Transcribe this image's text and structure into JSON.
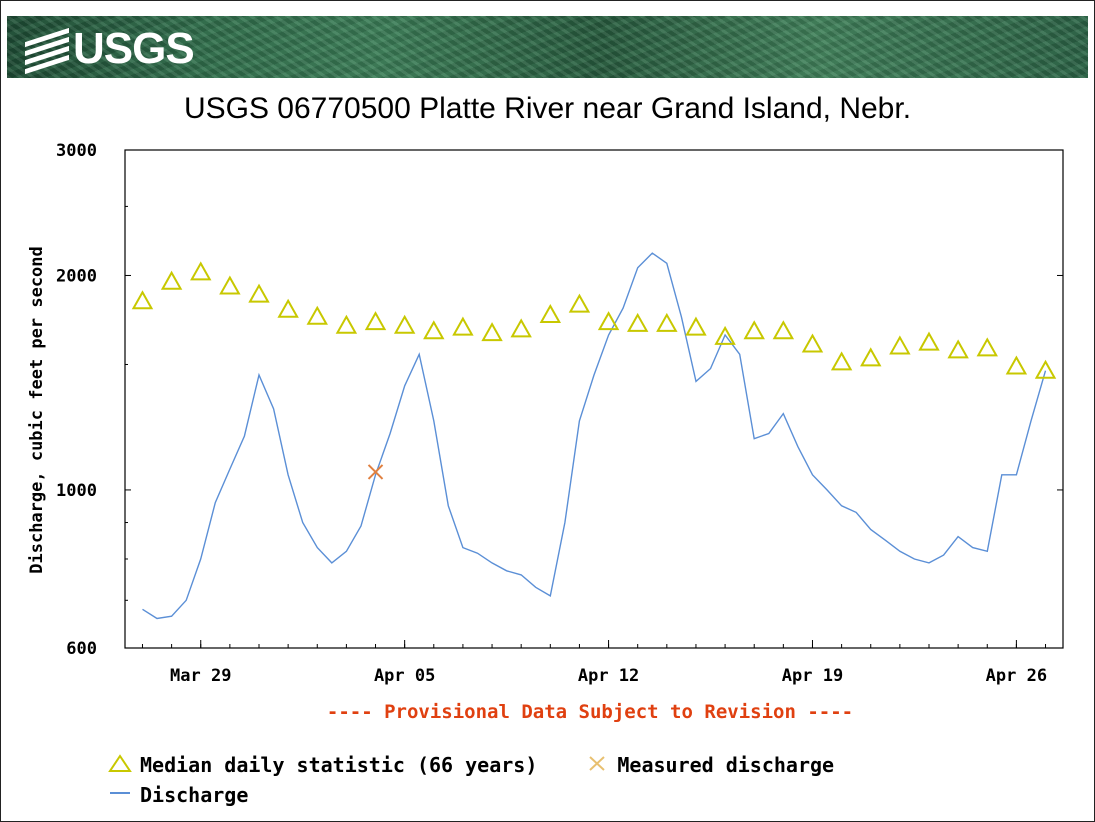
{
  "header": {
    "logo_text": "USGS",
    "title": "USGS 06770500 Platte River near Grand Island, Nebr."
  },
  "notice": "---- Provisional Data Subject to Revision ----",
  "legend": {
    "median": "Median daily statistic (66 years)",
    "measured": "Measured discharge",
    "discharge": "Discharge"
  },
  "colors": {
    "median": "#c8c800",
    "measured": "#e08040",
    "discharge": "#5b8fd6",
    "notice": "#e04010"
  },
  "chart_data": {
    "type": "line",
    "title": "USGS 06770500 Platte River near Grand Island, Nebr.",
    "xlabel": "",
    "ylabel": "Discharge, cubic feet per second",
    "yscale": "log",
    "ylim": [
      600,
      3000
    ],
    "yticks": [
      600,
      1000,
      2000,
      3000
    ],
    "xlim": [
      "2007-03-27",
      "2007-04-27"
    ],
    "xticks": [
      {
        "date": "2007-03-29",
        "label": "Mar 29"
      },
      {
        "date": "2007-04-05",
        "label": "Apr 05"
      },
      {
        "date": "2007-04-12",
        "label": "Apr 12"
      },
      {
        "date": "2007-04-19",
        "label": "Apr 19"
      },
      {
        "date": "2007-04-26",
        "label": "Apr 26"
      }
    ],
    "grid": false,
    "legend_position": "bottom",
    "series": [
      {
        "name": "Median daily statistic (66 years)",
        "kind": "points",
        "marker": "triangle",
        "x": [
          "2007-03-27",
          "2007-03-28",
          "2007-03-29",
          "2007-03-30",
          "2007-03-31",
          "2007-04-01",
          "2007-04-02",
          "2007-04-03",
          "2007-04-04",
          "2007-04-05",
          "2007-04-06",
          "2007-04-07",
          "2007-04-08",
          "2007-04-09",
          "2007-04-10",
          "2007-04-11",
          "2007-04-12",
          "2007-04-13",
          "2007-04-14",
          "2007-04-15",
          "2007-04-16",
          "2007-04-17",
          "2007-04-18",
          "2007-04-19",
          "2007-04-20",
          "2007-04-21",
          "2007-04-22",
          "2007-04-23",
          "2007-04-24",
          "2007-04-25",
          "2007-04-26",
          "2007-04-27"
        ],
        "y": [
          1840,
          1960,
          2020,
          1930,
          1880,
          1790,
          1750,
          1700,
          1720,
          1700,
          1670,
          1690,
          1660,
          1680,
          1760,
          1820,
          1720,
          1710,
          1710,
          1690,
          1640,
          1670,
          1670,
          1600,
          1510,
          1530,
          1590,
          1610,
          1570,
          1580,
          1490,
          1470
        ]
      },
      {
        "name": "Measured discharge",
        "kind": "points",
        "marker": "x",
        "x": [
          "2007-04-04"
        ],
        "y": [
          1060
        ]
      },
      {
        "name": "Discharge",
        "kind": "line",
        "x": [
          "2007-03-27",
          "2007-03-27T12:00",
          "2007-03-28",
          "2007-03-28T12:00",
          "2007-03-29",
          "2007-03-29T12:00",
          "2007-03-30",
          "2007-03-30T12:00",
          "2007-03-31",
          "2007-03-31T12:00",
          "2007-04-01",
          "2007-04-01T12:00",
          "2007-04-02",
          "2007-04-02T12:00",
          "2007-04-03",
          "2007-04-03T12:00",
          "2007-04-04",
          "2007-04-04T12:00",
          "2007-04-05",
          "2007-04-05T12:00",
          "2007-04-06",
          "2007-04-06T12:00",
          "2007-04-07",
          "2007-04-07T12:00",
          "2007-04-08",
          "2007-04-08T12:00",
          "2007-04-09",
          "2007-04-09T12:00",
          "2007-04-10",
          "2007-04-10T12:00",
          "2007-04-11",
          "2007-04-11T12:00",
          "2007-04-12",
          "2007-04-12T12:00",
          "2007-04-13",
          "2007-04-13T12:00",
          "2007-04-14",
          "2007-04-14T12:00",
          "2007-04-15",
          "2007-04-15T12:00",
          "2007-04-16",
          "2007-04-16T12:00",
          "2007-04-17",
          "2007-04-17T12:00",
          "2007-04-18",
          "2007-04-18T12:00",
          "2007-04-19",
          "2007-04-19T12:00",
          "2007-04-20",
          "2007-04-20T12:00",
          "2007-04-21",
          "2007-04-21T12:00",
          "2007-04-22",
          "2007-04-22T12:00",
          "2007-04-23",
          "2007-04-23T12:00",
          "2007-04-24",
          "2007-04-24T12:00",
          "2007-04-25",
          "2007-04-25T12:00",
          "2007-04-26",
          "2007-04-26T12:00",
          "2007-04-27"
        ],
        "y": [
          680,
          660,
          665,
          700,
          800,
          960,
          1070,
          1190,
          1450,
          1300,
          1050,
          900,
          830,
          790,
          820,
          890,
          1050,
          1200,
          1400,
          1550,
          1250,
          950,
          830,
          815,
          790,
          770,
          760,
          730,
          710,
          900,
          1250,
          1450,
          1650,
          1800,
          2050,
          2150,
          2080,
          1750,
          1420,
          1480,
          1650,
          1550,
          1180,
          1200,
          1280,
          1150,
          1050,
          1000,
          950,
          930,
          880,
          850,
          820,
          800,
          790,
          810,
          860,
          830,
          820,
          1050,
          1050,
          1250,
          1470
        ]
      }
    ]
  }
}
